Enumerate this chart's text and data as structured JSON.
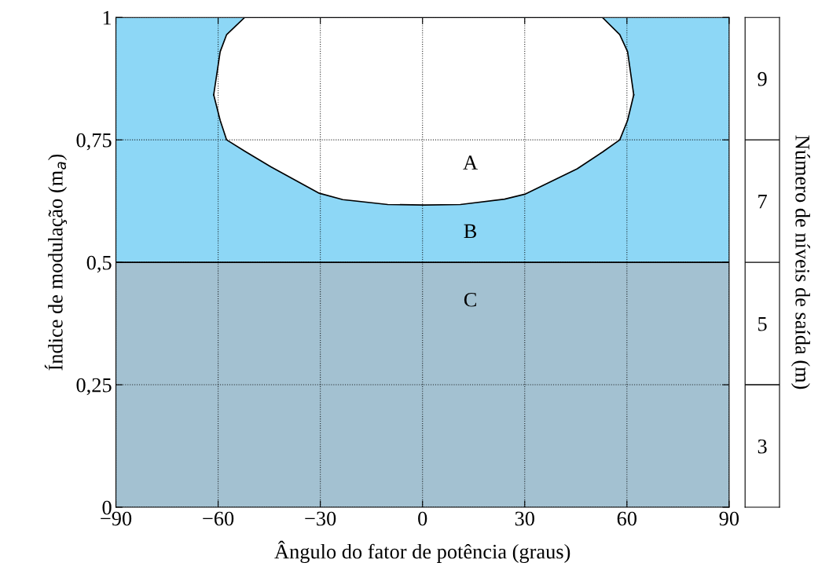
{
  "chart_data": [
    {
      "type": "area",
      "xlabel": "Ângulo do fator de potência (graus)",
      "ylabel": "Índice de modulação (m$_{a}$)",
      "series": [
        {
          "type": "area",
          "color": "#ffffff",
          "x": [
            -61.3,
            -59.4,
            -57.5,
            -52.2,
            -44.5,
            -30.3,
            -23.4,
            -10.2,
            0.5,
            11.1,
            24.1,
            30,
            45.4,
            52.8,
            57.9,
            60.2,
            62
          ],
          "values": [
            0.842,
            0.93,
            0.965,
            1,
            1,
            1,
            1,
            1,
            1,
            1,
            1,
            1,
            1,
            1,
            0.965,
            0.93,
            0.842
          ]
        },
        {
          "type": "line",
          "color": "#000000",
          "x": [
            -61.3,
            -59.4,
            -57.5,
            -52.2,
            -44.5,
            -30.3,
            -23.4,
            -10.2,
            0.5,
            11.1,
            24.1,
            30,
            45.4,
            52.8,
            57.9,
            60.2,
            62
          ],
          "values": [
            0.842,
            0.79,
            0.75,
            0.727,
            0.695,
            0.641,
            0.628,
            0.618,
            0.617,
            0.618,
            0.629,
            0.639,
            0.691,
            0.725,
            0.75,
            0.79,
            0.842
          ]
        }
      ],
      "bands": [
        {
          "axis": "y",
          "from": 0,
          "to": 0.5,
          "color": "#a3c1d1"
        },
        {
          "axis": "y",
          "from": 0.5,
          "to": 1,
          "color": "#8dd7f6"
        }
      ],
      "ref_lines": [
        {
          "axis": "y",
          "value": 0.5,
          "color": "#000000"
        }
      ],
      "annotations": [
        "A",
        "B",
        "C"
      ],
      "xlim": [
        -90,
        90
      ],
      "xticks": [
        {
          "value": -90,
          "label": "−90"
        },
        {
          "value": -60,
          "label": "−60"
        },
        {
          "value": -30,
          "label": "−30"
        },
        0,
        30,
        60,
        90
      ],
      "ylim": [
        0,
        1
      ],
      "yticks": [
        0,
        {
          "value": 0.25,
          "label": "0,25"
        },
        {
          "value": 0.5,
          "label": "0,5"
        },
        {
          "value": 0.75,
          "label": "0,75"
        },
        1
      ],
      "grid": true
    },
    {
      "type": "heatmap",
      "ylabel": "Número de níveis de saída (m)",
      "categories": [
        null
      ],
      "y_categories": [
        "9",
        "7",
        "5",
        "3"
      ],
      "cells": [
        [
          null
        ],
        [
          null
        ],
        [
          null
        ],
        [
          null
        ]
      ]
    }
  ]
}
